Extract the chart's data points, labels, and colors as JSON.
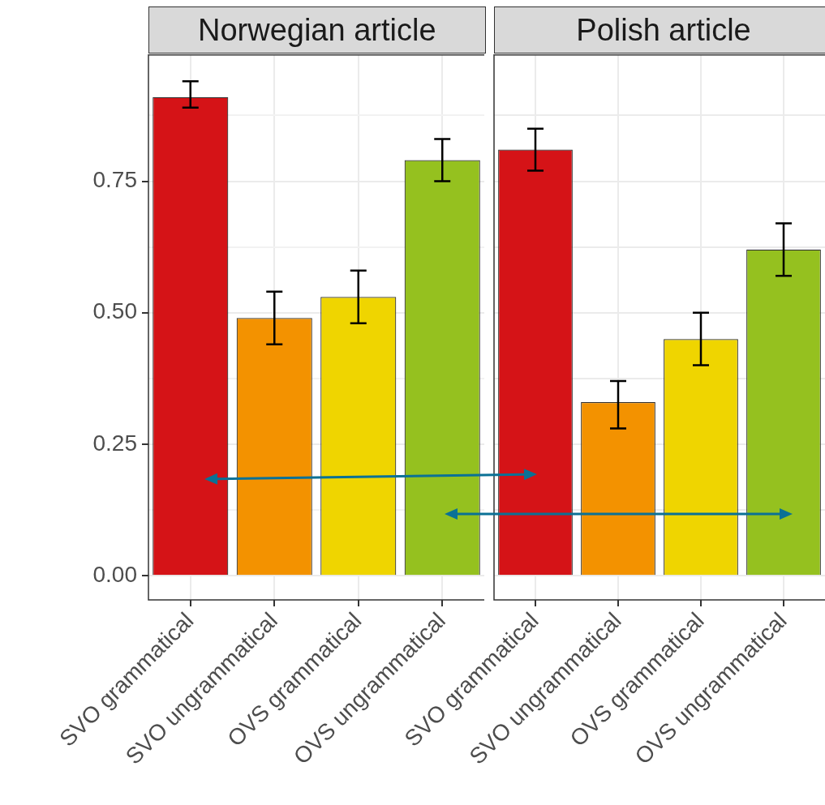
{
  "chart_data": [
    {
      "type": "bar",
      "title": "Norwegian article",
      "categories": [
        "SVO grammatical",
        "SVO ungrammatical",
        "OVS grammatical",
        "OVS ungrammatical"
      ],
      "values": [
        0.91,
        0.49,
        0.53,
        0.79
      ],
      "colors": [
        "#d51317",
        "#f39200",
        "#efd500",
        "#95c11f"
      ],
      "errors": [
        [
          0.89,
          0.94
        ],
        [
          0.44,
          0.54
        ],
        [
          0.48,
          0.58
        ],
        [
          0.75,
          0.83
        ]
      ],
      "ylim": [
        -0.046,
        0.99
      ],
      "yticks": [
        {
          "value": 0,
          "label": "0.00"
        },
        {
          "value": 0.125,
          "label": null
        },
        {
          "value": 0.25,
          "label": "0.25"
        },
        {
          "value": 0.375,
          "label": null
        },
        {
          "value": 0.5,
          "label": "0.50"
        },
        {
          "value": 0.625,
          "label": null
        },
        {
          "value": 0.75,
          "label": "0.75"
        },
        {
          "value": 0.875,
          "label": null
        }
      ],
      "grid": true
    },
    {
      "type": "bar",
      "title": "Polish article",
      "categories": [
        "SVO grammatical",
        "SVO ungrammatical",
        "OVS grammatical",
        "OVS ungrammatical"
      ],
      "values": [
        0.81,
        0.33,
        0.45,
        0.62
      ],
      "colors": [
        "#d51317",
        "#f39200",
        "#efd500",
        "#95c11f"
      ],
      "errors": [
        [
          0.77,
          0.85
        ],
        [
          0.28,
          0.37
        ],
        [
          0.4,
          0.5
        ],
        [
          0.57,
          0.67
        ]
      ],
      "ylim": [
        -0.046,
        0.99
      ],
      "yticks": [
        0,
        0.125,
        0.25,
        0.375,
        0.5,
        0.625,
        0.75,
        0.875
      ],
      "grid": true,
      "tick_labels": "x"
    }
  ]
}
